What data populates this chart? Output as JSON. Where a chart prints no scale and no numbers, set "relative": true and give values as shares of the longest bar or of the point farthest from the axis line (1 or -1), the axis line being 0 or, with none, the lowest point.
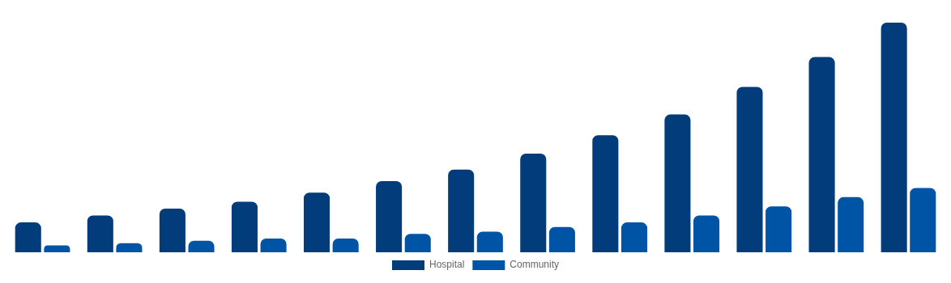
{
  "chart_data": {
    "type": "bar",
    "relative": true,
    "legend": "bottom",
    "categories": [
      null,
      null,
      null,
      null,
      null,
      null,
      null,
      null,
      null,
      null,
      null,
      null,
      null
    ],
    "series": [
      {
        "name": "Hospital",
        "color": "#023c7a",
        "values": [
          0.13,
          0.16,
          0.19,
          0.22,
          0.26,
          0.31,
          0.36,
          0.43,
          0.51,
          0.6,
          0.72,
          0.85,
          1
        ]
      },
      {
        "name": "Community",
        "color": "#0054a6",
        "values": [
          0.03,
          0.04,
          0.05,
          0.06,
          0.06,
          0.08,
          0.09,
          0.11,
          0.13,
          0.16,
          0.2,
          0.24,
          0.28
        ]
      }
    ]
  }
}
